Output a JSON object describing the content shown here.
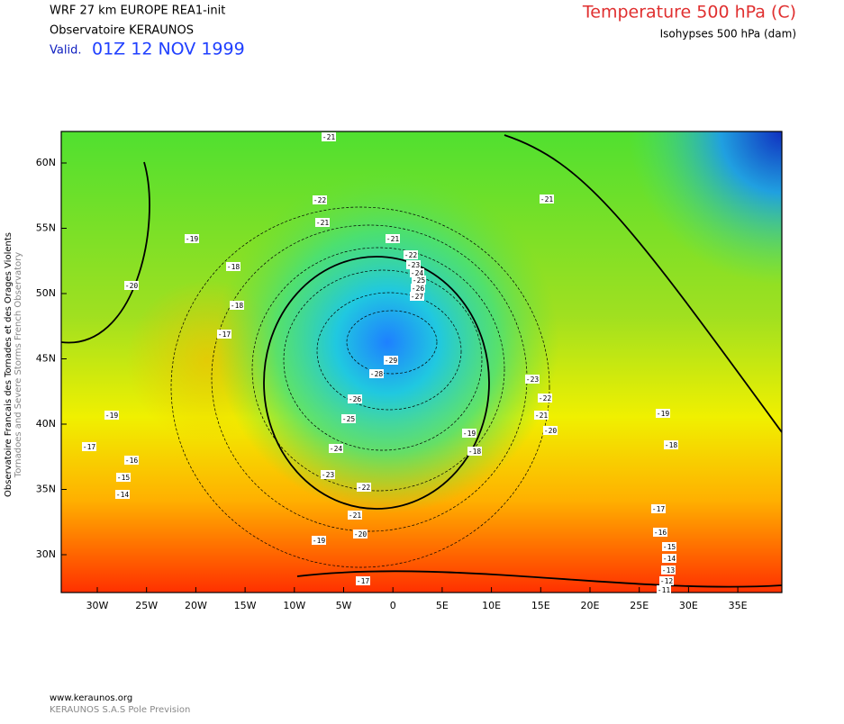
{
  "header": {
    "model": "WRF 27 km EUROPE   REA1-init",
    "source": "Observatoire KERAUNOS",
    "valid_label": "Valid.",
    "valid_time": "01Z 12 NOV 1999",
    "field": "Temperature 500 hPa (C)",
    "contours": "Isohypses 500 hPa (dam)"
  },
  "side": {
    "line1": "Observatoire Francais des Tornades et des Orages Violents",
    "line2": "Tornadoes and Severe Storms French Observatory"
  },
  "map": {
    "lat_labels": [
      "60N",
      "55N",
      "50N",
      "45N",
      "40N",
      "35N",
      "30N"
    ],
    "lon_labels": [
      "30W",
      "25W",
      "20W",
      "15W",
      "10W",
      "5W",
      "0",
      "5E",
      "10E",
      "15E",
      "20E",
      "25E",
      "30E",
      "35E"
    ],
    "contour_labels": [
      "-21",
      "-22",
      "-21",
      "-21",
      "-19",
      "-18",
      "-20",
      "-18",
      "-17",
      "-22",
      "-23",
      "-24",
      "-25",
      "-26",
      "-27",
      "-29",
      "-28",
      "-26",
      "-25",
      "-24",
      "-23",
      "-22",
      "-21",
      "-20",
      "-19",
      "-17",
      "-19",
      "-17",
      "-16",
      "-15",
      "-14",
      "-21",
      "-23",
      "-22",
      "-21",
      "-20",
      "-19",
      "-18",
      "-19",
      "-18",
      "-17",
      "-16",
      "-15",
      "-14",
      "-13",
      "-12",
      "-11"
    ]
  },
  "footer": {
    "site": "www.keraunos.org",
    "company": "KERAUNOS S.A.S Pole Prevision"
  }
}
